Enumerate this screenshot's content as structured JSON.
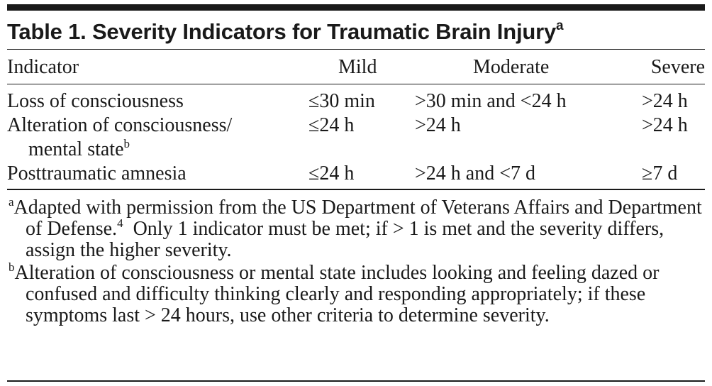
{
  "table": {
    "title": "Table 1. Severity Indicators for Traumatic Brain Injury",
    "title_marker": "a",
    "headers": [
      "Indicator",
      "Mild",
      "Moderate",
      "Severe"
    ],
    "rows": [
      {
        "indicator": "Loss of consciousness",
        "indicator_cont": "",
        "marker": "",
        "mild": "≤30 min",
        "moderate": ">30 min and <24 h",
        "severe": ">24 h"
      },
      {
        "indicator": "Alteration of consciousness/",
        "indicator_cont": "mental state",
        "marker": "b",
        "mild": "≤24 h",
        "moderate": ">24 h",
        "severe": ">24 h"
      },
      {
        "indicator": "Posttraumatic amnesia",
        "indicator_cont": "",
        "marker": "",
        "mild": "≤24 h",
        "moderate": ">24 h and <7 d",
        "severe": "≥7 d"
      }
    ]
  },
  "footnotes": [
    {
      "marker": "a",
      "text_before": "Adapted with permission from the US Department of Veterans Affairs and Department of Defense.",
      "ref": "4",
      "text_after": "  Only 1 indicator must be met; if > 1 is met and the severity differs, assign the higher severity."
    },
    {
      "marker": "b",
      "text_before": "Alteration of consciousness or mental state includes looking and feeling dazed or confused and difficulty thinking clearly and responding appropriately; if these symptoms last > 24 hours, use other criteria to determine severity.",
      "ref": "",
      "text_after": ""
    }
  ]
}
